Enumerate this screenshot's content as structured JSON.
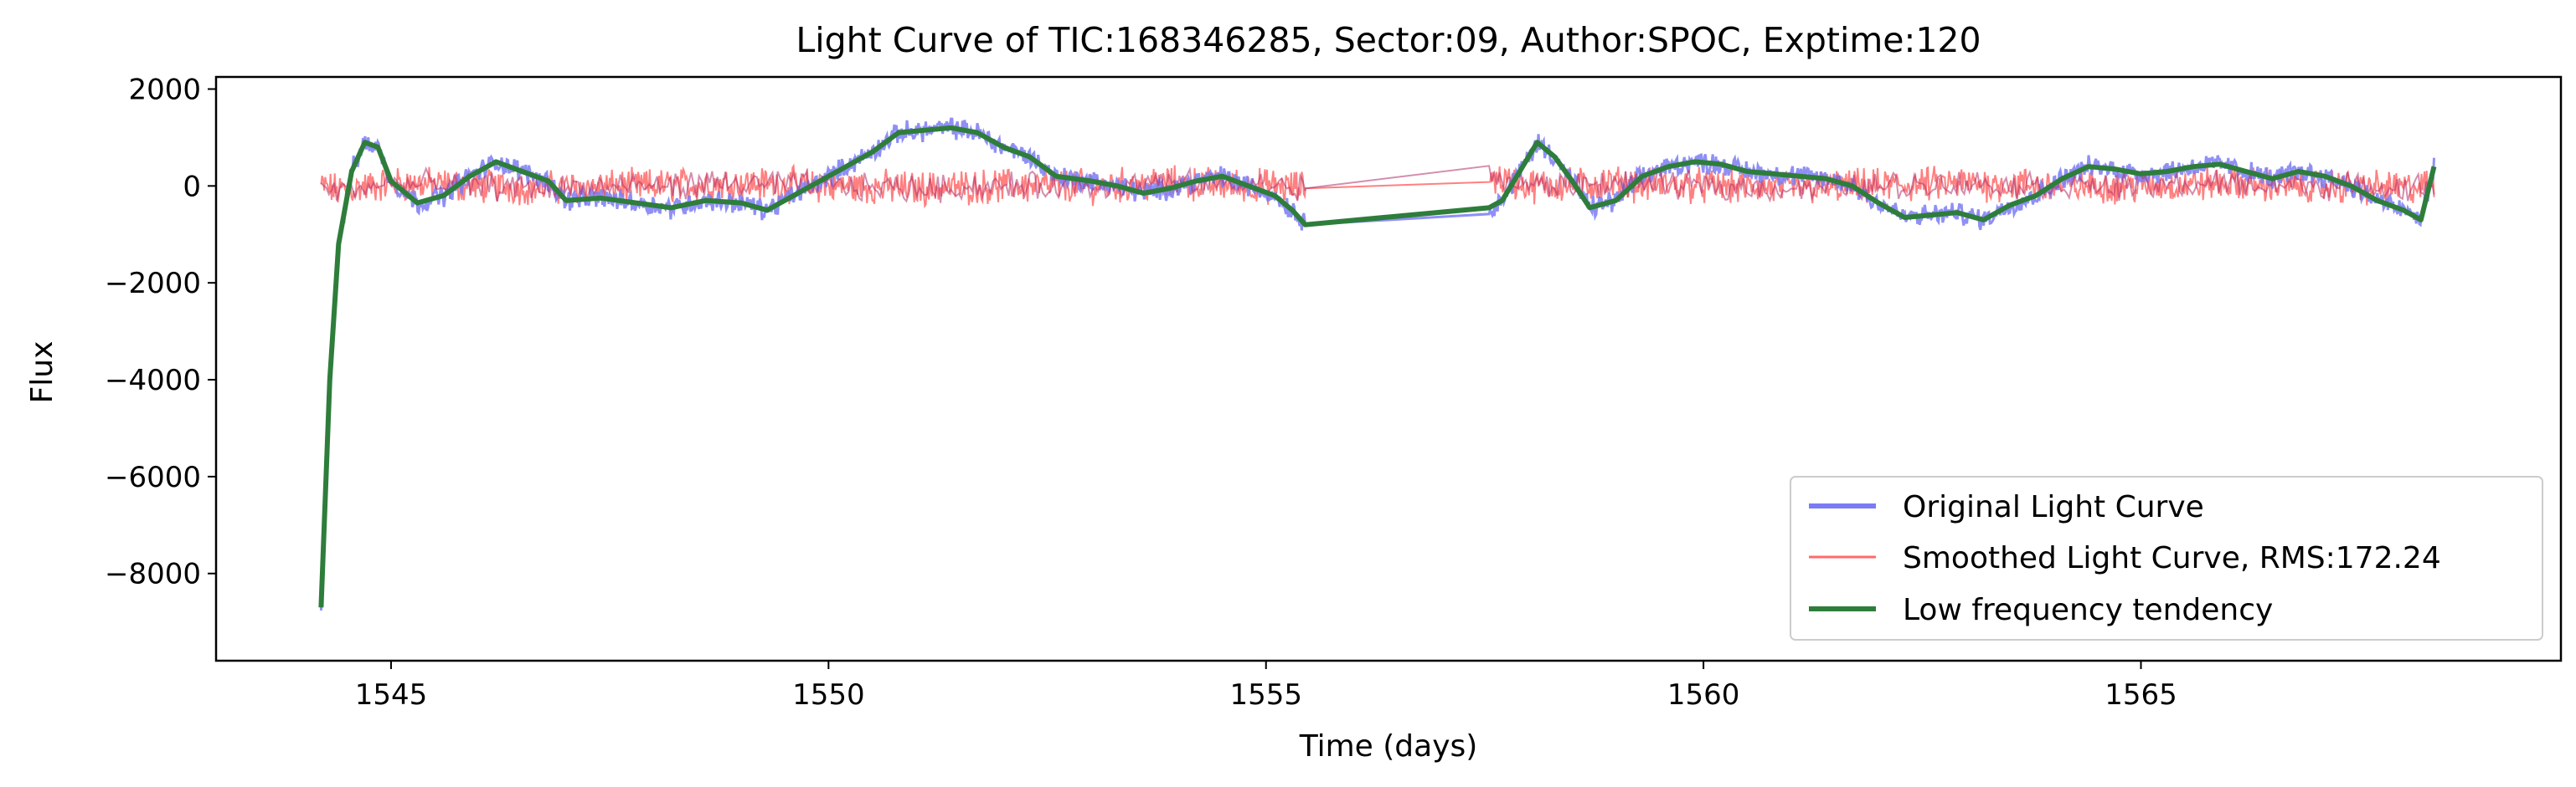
{
  "chart_data": {
    "type": "line",
    "title": "Light Curve of TIC:168346285, Sector:09, Author:SPOC, Exptime:120",
    "xlabel": "Time (days)",
    "ylabel": "Flux",
    "xlim": [
      1543.0,
      1569.8
    ],
    "ylim": [
      -9800,
      2250
    ],
    "xticks": [
      1545,
      1550,
      1555,
      1560,
      1565
    ],
    "yticks": [
      2000,
      0,
      -2000,
      -4000,
      -6000,
      -8000
    ],
    "grid": false,
    "legend_position": "lower right",
    "gap": [
      1555.45,
      1557.55
    ],
    "series": [
      {
        "name": "Original Light Curve",
        "color": "#7b7bf5",
        "x": [
          1544.2,
          1544.3,
          1544.4,
          1544.55,
          1544.7,
          1544.85,
          1545.0,
          1545.3,
          1545.6,
          1545.9,
          1546.2,
          1546.5,
          1546.8,
          1547.0,
          1547.4,
          1547.8,
          1548.2,
          1548.6,
          1549.0,
          1549.3,
          1549.6,
          1549.9,
          1550.2,
          1550.5,
          1550.8,
          1551.1,
          1551.4,
          1551.7,
          1552.0,
          1552.3,
          1552.6,
          1553.0,
          1553.3,
          1553.6,
          1553.9,
          1554.2,
          1554.5,
          1554.8,
          1555.1,
          1555.3,
          1555.45,
          1557.55,
          1557.7,
          1557.9,
          1558.1,
          1558.3,
          1558.5,
          1558.7,
          1559.0,
          1559.3,
          1559.6,
          1559.9,
          1560.2,
          1560.5,
          1560.8,
          1561.1,
          1561.4,
          1561.7,
          1562.0,
          1562.3,
          1562.6,
          1562.9,
          1563.2,
          1563.5,
          1563.8,
          1564.1,
          1564.4,
          1564.7,
          1565.0,
          1565.3,
          1565.6,
          1565.9,
          1566.2,
          1566.5,
          1566.8,
          1567.1,
          1567.4,
          1567.7,
          1568.0,
          1568.2,
          1568.35
        ],
        "y": [
          -8700,
          -4000,
          -1200,
          300,
          900,
          800,
          100,
          -350,
          -200,
          200,
          500,
          300,
          100,
          -300,
          -250,
          -350,
          -450,
          -300,
          -350,
          -500,
          -200,
          100,
          400,
          700,
          1100,
          1150,
          1200,
          1100,
          800,
          600,
          200,
          100,
          0,
          -150,
          -50,
          100,
          200,
          0,
          -200,
          -500,
          -800,
          -450,
          -300,
          300,
          900,
          600,
          100,
          -450,
          -300,
          200,
          400,
          500,
          450,
          300,
          250,
          200,
          150,
          0,
          -350,
          -650,
          -600,
          -550,
          -700,
          -400,
          -200,
          150,
          400,
          350,
          250,
          300,
          400,
          450,
          300,
          150,
          300,
          200,
          0,
          -300,
          -500,
          -700,
          400
        ]
      },
      {
        "name": "Smoothed Light Curve, RMS:172.24",
        "color": "#ff6a6a",
        "x": [
          1544.2,
          1544.4,
          1545.0,
          1546.0,
          1547.0,
          1548.0,
          1549.0,
          1550.0,
          1551.0,
          1552.0,
          1553.0,
          1554.0,
          1555.0,
          1555.45,
          1557.55,
          1558.0,
          1559.0,
          1560.0,
          1561.0,
          1562.0,
          1563.0,
          1564.0,
          1565.0,
          1566.0,
          1567.0,
          1568.0,
          1568.35
        ],
        "y": [
          0,
          -100,
          50,
          0,
          -50,
          0,
          50,
          0,
          -50,
          0,
          0,
          50,
          0,
          -50,
          200,
          0,
          50,
          0,
          -50,
          0,
          50,
          0,
          0,
          50,
          0,
          -50,
          0
        ]
      },
      {
        "name": "Low frequency tendency",
        "color": "#2e7d3b",
        "x": [
          1544.2,
          1544.3,
          1544.4,
          1544.55,
          1544.7,
          1544.85,
          1545.0,
          1545.3,
          1545.6,
          1545.9,
          1546.2,
          1546.5,
          1546.8,
          1547.0,
          1547.4,
          1547.8,
          1548.2,
          1548.6,
          1549.0,
          1549.3,
          1549.6,
          1549.9,
          1550.2,
          1550.5,
          1550.8,
          1551.1,
          1551.4,
          1551.7,
          1552.0,
          1552.3,
          1552.6,
          1553.0,
          1553.3,
          1553.6,
          1553.9,
          1554.2,
          1554.5,
          1554.8,
          1555.1,
          1555.3,
          1555.45,
          1557.55,
          1557.7,
          1557.9,
          1558.1,
          1558.3,
          1558.5,
          1558.7,
          1559.0,
          1559.3,
          1559.6,
          1559.9,
          1560.2,
          1560.5,
          1560.8,
          1561.1,
          1561.4,
          1561.7,
          1562.0,
          1562.3,
          1562.6,
          1562.9,
          1563.2,
          1563.5,
          1563.8,
          1564.1,
          1564.4,
          1564.7,
          1565.0,
          1565.3,
          1565.6,
          1565.9,
          1566.2,
          1566.5,
          1566.8,
          1567.1,
          1567.4,
          1567.7,
          1568.0,
          1568.2,
          1568.35
        ],
        "y": [
          -8700,
          -4000,
          -1200,
          300,
          900,
          800,
          100,
          -350,
          -200,
          200,
          500,
          300,
          100,
          -300,
          -250,
          -350,
          -450,
          -300,
          -350,
          -500,
          -200,
          100,
          400,
          700,
          1100,
          1150,
          1200,
          1100,
          800,
          600,
          200,
          100,
          0,
          -150,
          -50,
          100,
          200,
          0,
          -200,
          -500,
          -800,
          -450,
          -300,
          300,
          900,
          600,
          100,
          -450,
          -300,
          200,
          400,
          500,
          450,
          300,
          250,
          200,
          150,
          0,
          -350,
          -650,
          -600,
          -550,
          -700,
          -400,
          -200,
          150,
          400,
          350,
          250,
          300,
          400,
          450,
          300,
          150,
          300,
          200,
          0,
          -300,
          -500,
          -700,
          400
        ]
      }
    ]
  }
}
